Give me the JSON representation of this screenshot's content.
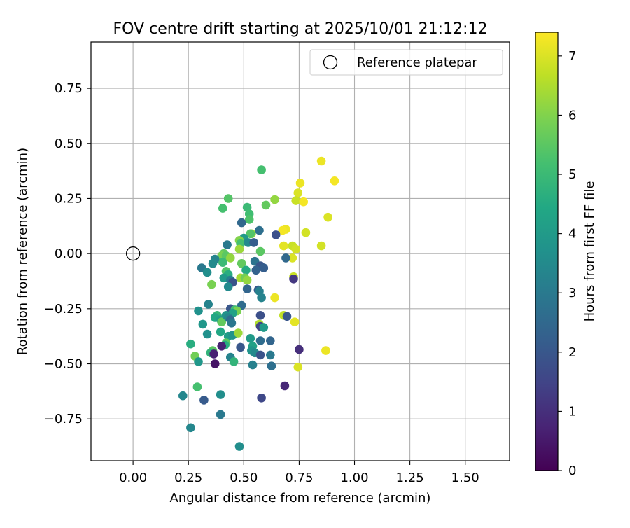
{
  "chart_data": {
    "type": "scatter",
    "title": "FOV centre drift starting at 2025/10/01 21:12:12",
    "xlabel": "Angular distance from reference (arcmin)",
    "ylabel": "Rotation from reference (arcmin)",
    "xlim": [
      -0.19,
      1.7
    ],
    "ylim": [
      -0.94,
      0.96
    ],
    "xticks": [
      0.0,
      0.25,
      0.5,
      0.75,
      1.0,
      1.25,
      1.5
    ],
    "xtick_labels": [
      "0.00",
      "0.25",
      "0.50",
      "0.75",
      "1.00",
      "1.25",
      "1.50"
    ],
    "yticks": [
      -0.75,
      -0.5,
      -0.25,
      0.0,
      0.25,
      0.5,
      0.75
    ],
    "ytick_labels": [
      "−0.75",
      "−0.50",
      "−0.25",
      "0.00",
      "0.25",
      "0.50",
      "0.75"
    ],
    "grid": true,
    "legend": {
      "position": "top-right",
      "entries": [
        {
          "label": "Reference platepar",
          "marker": "open-circle",
          "color": "#000000"
        }
      ]
    },
    "reference_point": {
      "x": 0.0,
      "y": 0.0,
      "label": "Reference platepar"
    },
    "colorbar": {
      "label": "Hours from first FF file",
      "colormap": "viridis",
      "range": [
        0,
        7.4
      ],
      "ticks": [
        0,
        1,
        2,
        3,
        4,
        5,
        6,
        7
      ]
    },
    "points": [
      [
        0.85,
        0.42,
        7.2
      ],
      [
        0.91,
        0.33,
        7.3
      ],
      [
        0.755,
        0.32,
        7.2
      ],
      [
        0.745,
        0.275,
        7.0
      ],
      [
        0.735,
        0.24,
        6.8
      ],
      [
        0.77,
        0.235,
        7.3
      ],
      [
        0.88,
        0.165,
        7.0
      ],
      [
        0.69,
        0.11,
        7.2
      ],
      [
        0.675,
        0.105,
        7.3
      ],
      [
        0.78,
        0.095,
        6.9
      ],
      [
        0.68,
        0.035,
        7.1
      ],
      [
        0.72,
        0.035,
        6.8
      ],
      [
        0.735,
        0.02,
        6.9
      ],
      [
        0.85,
        0.035,
        6.9
      ],
      [
        0.72,
        -0.02,
        7.0
      ],
      [
        0.725,
        -0.105,
        6.8
      ],
      [
        0.725,
        -0.115,
        1.2
      ],
      [
        0.64,
        -0.2,
        7.2
      ],
      [
        0.68,
        -0.28,
        6.7
      ],
      [
        0.73,
        -0.31,
        7.1
      ],
      [
        0.695,
        -0.285,
        2.0
      ],
      [
        0.87,
        -0.44,
        7.2
      ],
      [
        0.745,
        -0.515,
        7.0
      ],
      [
        0.75,
        -0.435,
        1.0
      ],
      [
        0.685,
        -0.6,
        0.8
      ],
      [
        0.645,
        0.085,
        1.8
      ],
      [
        0.69,
        -0.02,
        2.5
      ],
      [
        0.58,
        0.38,
        5.2
      ],
      [
        0.6,
        0.22,
        5.6
      ],
      [
        0.64,
        0.245,
        6.2
      ],
      [
        0.515,
        0.21,
        5.0
      ],
      [
        0.43,
        0.25,
        5.4
      ],
      [
        0.405,
        0.205,
        5.2
      ],
      [
        0.525,
        0.18,
        5.1
      ],
      [
        0.525,
        0.155,
        5.3
      ],
      [
        0.535,
        0.09,
        6.3
      ],
      [
        0.53,
        0.09,
        5.4
      ],
      [
        0.49,
        0.14,
        2.5
      ],
      [
        0.57,
        0.105,
        2.7
      ],
      [
        0.5,
        0.07,
        4.0
      ],
      [
        0.48,
        0.06,
        6.0
      ],
      [
        0.485,
        0.045,
        5.2
      ],
      [
        0.48,
        0.02,
        6.3
      ],
      [
        0.425,
        0.04,
        3.0
      ],
      [
        0.52,
        0.05,
        3.5
      ],
      [
        0.545,
        0.05,
        2.2
      ],
      [
        0.575,
        0.01,
        5.5
      ],
      [
        0.41,
        0.0,
        5.6
      ],
      [
        0.4,
        -0.01,
        5.9
      ],
      [
        0.42,
        -0.01,
        5.5
      ],
      [
        0.44,
        -0.02,
        6.2
      ],
      [
        0.405,
        -0.04,
        5.0
      ],
      [
        0.37,
        -0.025,
        3.3
      ],
      [
        0.36,
        -0.045,
        3.5
      ],
      [
        0.31,
        -0.065,
        3.0
      ],
      [
        0.335,
        -0.085,
        3.6
      ],
      [
        0.49,
        -0.045,
        5.6
      ],
      [
        0.51,
        -0.075,
        4.5
      ],
      [
        0.55,
        -0.035,
        2.8
      ],
      [
        0.575,
        -0.055,
        2.0
      ],
      [
        0.555,
        -0.075,
        2.3
      ],
      [
        0.59,
        -0.065,
        2.2
      ],
      [
        0.42,
        -0.08,
        5.4
      ],
      [
        0.43,
        -0.095,
        4.6
      ],
      [
        0.41,
        -0.11,
        4.0
      ],
      [
        0.44,
        -0.12,
        3.1
      ],
      [
        0.45,
        -0.13,
        1.9
      ],
      [
        0.43,
        -0.15,
        3.5
      ],
      [
        0.355,
        -0.14,
        5.9
      ],
      [
        0.485,
        -0.11,
        6.4
      ],
      [
        0.505,
        -0.11,
        5.8
      ],
      [
        0.515,
        -0.12,
        6.2
      ],
      [
        0.515,
        -0.16,
        2.4
      ],
      [
        0.565,
        -0.165,
        2.1
      ],
      [
        0.57,
        -0.17,
        3.2
      ],
      [
        0.58,
        -0.2,
        3.3
      ],
      [
        0.34,
        -0.23,
        3.3
      ],
      [
        0.295,
        -0.26,
        3.7
      ],
      [
        0.49,
        -0.235,
        2.6
      ],
      [
        0.44,
        -0.25,
        2.0
      ],
      [
        0.46,
        -0.255,
        5.1
      ],
      [
        0.47,
        -0.26,
        5.9
      ],
      [
        0.45,
        -0.27,
        4.2
      ],
      [
        0.38,
        -0.28,
        4.9
      ],
      [
        0.37,
        -0.29,
        4.4
      ],
      [
        0.395,
        -0.3,
        4.1
      ],
      [
        0.4,
        -0.31,
        5.6
      ],
      [
        0.42,
        -0.28,
        3.8
      ],
      [
        0.43,
        -0.29,
        3.4
      ],
      [
        0.44,
        -0.3,
        2.6
      ],
      [
        0.445,
        -0.315,
        2.9
      ],
      [
        0.315,
        -0.32,
        3.9
      ],
      [
        0.575,
        -0.28,
        1.8
      ],
      [
        0.57,
        -0.32,
        6.5
      ],
      [
        0.575,
        -0.33,
        1.5
      ],
      [
        0.59,
        -0.335,
        4.0
      ],
      [
        0.395,
        -0.355,
        4.4
      ],
      [
        0.335,
        -0.365,
        3.7
      ],
      [
        0.43,
        -0.375,
        4.1
      ],
      [
        0.45,
        -0.37,
        3.8
      ],
      [
        0.475,
        -0.36,
        6.3
      ],
      [
        0.53,
        -0.385,
        4.0
      ],
      [
        0.575,
        -0.395,
        2.6
      ],
      [
        0.62,
        -0.395,
        2.4
      ],
      [
        0.42,
        -0.405,
        5.5
      ],
      [
        0.415,
        -0.415,
        4.6
      ],
      [
        0.4,
        -0.42,
        0.7
      ],
      [
        0.36,
        -0.44,
        5.5
      ],
      [
        0.35,
        -0.45,
        4.8
      ],
      [
        0.365,
        -0.455,
        0.7
      ],
      [
        0.485,
        -0.425,
        2.0
      ],
      [
        0.54,
        -0.42,
        4.2
      ],
      [
        0.535,
        -0.44,
        3.8
      ],
      [
        0.55,
        -0.45,
        3.5
      ],
      [
        0.575,
        -0.46,
        1.9
      ],
      [
        0.62,
        -0.46,
        3.0
      ],
      [
        0.44,
        -0.47,
        3.3
      ],
      [
        0.455,
        -0.49,
        4.8
      ],
      [
        0.28,
        -0.465,
        5.8
      ],
      [
        0.295,
        -0.49,
        3.9
      ],
      [
        0.37,
        -0.5,
        0.4
      ],
      [
        0.54,
        -0.505,
        3.2
      ],
      [
        0.625,
        -0.51,
        2.7
      ],
      [
        0.26,
        -0.41,
        4.6
      ],
      [
        0.29,
        -0.605,
        5.2
      ],
      [
        0.225,
        -0.645,
        3.4
      ],
      [
        0.32,
        -0.665,
        2.1
      ],
      [
        0.395,
        -0.64,
        3.6
      ],
      [
        0.58,
        -0.655,
        1.6
      ],
      [
        0.395,
        -0.73,
        3.0
      ],
      [
        0.26,
        -0.79,
        3.4
      ],
      [
        0.48,
        -0.875,
        3.6
      ]
    ]
  }
}
